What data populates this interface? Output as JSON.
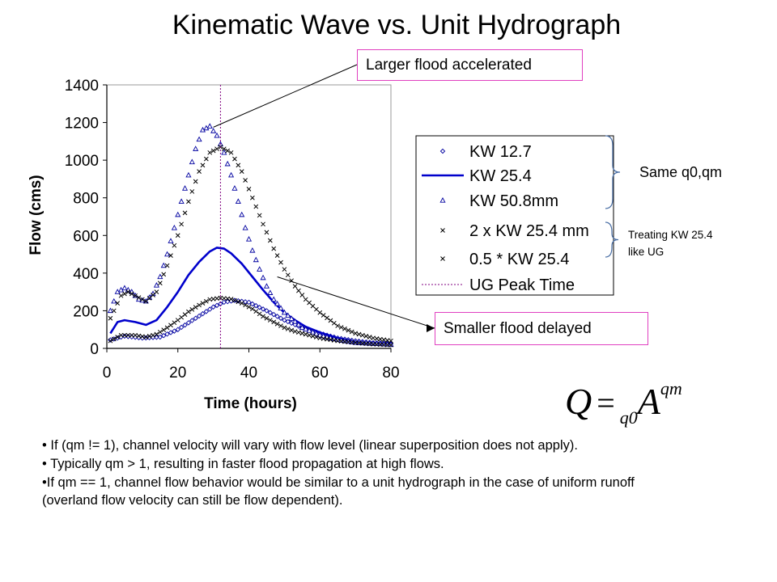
{
  "slide": {
    "title": "Kinematic Wave vs. Unit Hydrograph",
    "callout_top": "Larger flood accelerated",
    "callout_bottom": "Smaller flood delayed",
    "brace_label_top": "Same q0,qm",
    "brace_label_bottom_1": "Treating KW 25.4",
    "brace_label_bottom_2": "like UG",
    "formula": {
      "lhs": "Q",
      "eq": "=",
      "sub": "q0",
      "var": "A",
      "sup": "qm"
    },
    "bullets": [
      "• If (qm != 1), channel velocity will vary with flow level (linear superposition does not apply).",
      "• Typically qm > 1, resulting in faster flood propagation at high flows.",
      "•If qm == 1, channel flow behavior would be similar to a unit hydrograph in the case of uniform runoff (overland flow velocity can still be flow dependent)."
    ],
    "colors": {
      "accent": "#e040c0",
      "series_blue": "#0000cc",
      "peak_line": "#800080"
    }
  },
  "chart_data": {
    "type": "line",
    "xlabel": "Time (hours)",
    "ylabel": "Flow (cms)",
    "xlim": [
      0,
      80
    ],
    "ylim": [
      0,
      1400
    ],
    "xticks": [
      "0",
      "20",
      "40",
      "60",
      "80"
    ],
    "yticks": [
      "0",
      "200",
      "400",
      "600",
      "800",
      "1000",
      "1200",
      "1400"
    ],
    "legend_position": "right",
    "ug_peak_time": 32,
    "series": [
      {
        "name": "KW 12.7",
        "marker": "diamond",
        "x": [
          1,
          5,
          10,
          15,
          20,
          25,
          30,
          33,
          36,
          40,
          45,
          50,
          55,
          60,
          65,
          70,
          75,
          80
        ],
        "y": [
          45,
          65,
          55,
          60,
          100,
          160,
          220,
          245,
          255,
          245,
          200,
          150,
          110,
          80,
          55,
          40,
          30,
          25
        ]
      },
      {
        "name": "KW 25.4",
        "marker": "line",
        "x": [
          1,
          3,
          5,
          8,
          11,
          14,
          17,
          20,
          23,
          26,
          29,
          31,
          33,
          35,
          38,
          41,
          44,
          47,
          50,
          53,
          56,
          60,
          65,
          70,
          75,
          80
        ],
        "y": [
          80,
          140,
          150,
          140,
          125,
          150,
          220,
          300,
          390,
          460,
          515,
          535,
          530,
          505,
          450,
          380,
          310,
          245,
          190,
          150,
          115,
          85,
          55,
          35,
          25,
          20
        ]
      },
      {
        "name": "KW 50.8mm",
        "marker": "triangle",
        "x": [
          1,
          3,
          5,
          7,
          9,
          11,
          13,
          15,
          17,
          19,
          21,
          23,
          25,
          27,
          29,
          31,
          33,
          35,
          37,
          39,
          41,
          43,
          45,
          47,
          50,
          55,
          60,
          65,
          70,
          75,
          80
        ],
        "y": [
          200,
          300,
          320,
          300,
          260,
          250,
          290,
          380,
          500,
          640,
          780,
          920,
          1060,
          1160,
          1180,
          1130,
          1040,
          920,
          780,
          640,
          520,
          420,
          330,
          260,
          190,
          110,
          70,
          45,
          30,
          25,
          20
        ]
      },
      {
        "name": "2 x KW 25.4 mm",
        "marker": "x",
        "x": [
          1,
          4,
          6,
          8,
          11,
          14,
          17,
          20,
          23,
          26,
          29,
          32,
          35,
          38,
          41,
          44,
          47,
          50,
          53,
          56,
          60,
          65,
          70,
          75,
          80
        ],
        "y": [
          160,
          280,
          300,
          280,
          250,
          300,
          440,
          600,
          780,
          940,
          1040,
          1070,
          1040,
          940,
          800,
          660,
          530,
          420,
          330,
          260,
          190,
          120,
          80,
          55,
          40
        ]
      },
      {
        "name": "0.5 * KW 25.4",
        "marker": "x",
        "x": [
          1,
          4,
          8,
          11,
          14,
          17,
          20,
          23,
          26,
          29,
          32,
          35,
          38,
          41,
          44,
          47,
          50,
          53,
          56,
          60,
          65,
          70,
          75,
          80
        ],
        "y": [
          40,
          70,
          70,
          60,
          75,
          110,
          150,
          195,
          230,
          260,
          268,
          262,
          240,
          210,
          170,
          140,
          110,
          90,
          75,
          55,
          40,
          30,
          22,
          18
        ]
      },
      {
        "name": "UG Peak Time",
        "marker": "dashed-vertical",
        "x": [
          32,
          32
        ],
        "y": [
          0,
          1400
        ]
      }
    ]
  }
}
